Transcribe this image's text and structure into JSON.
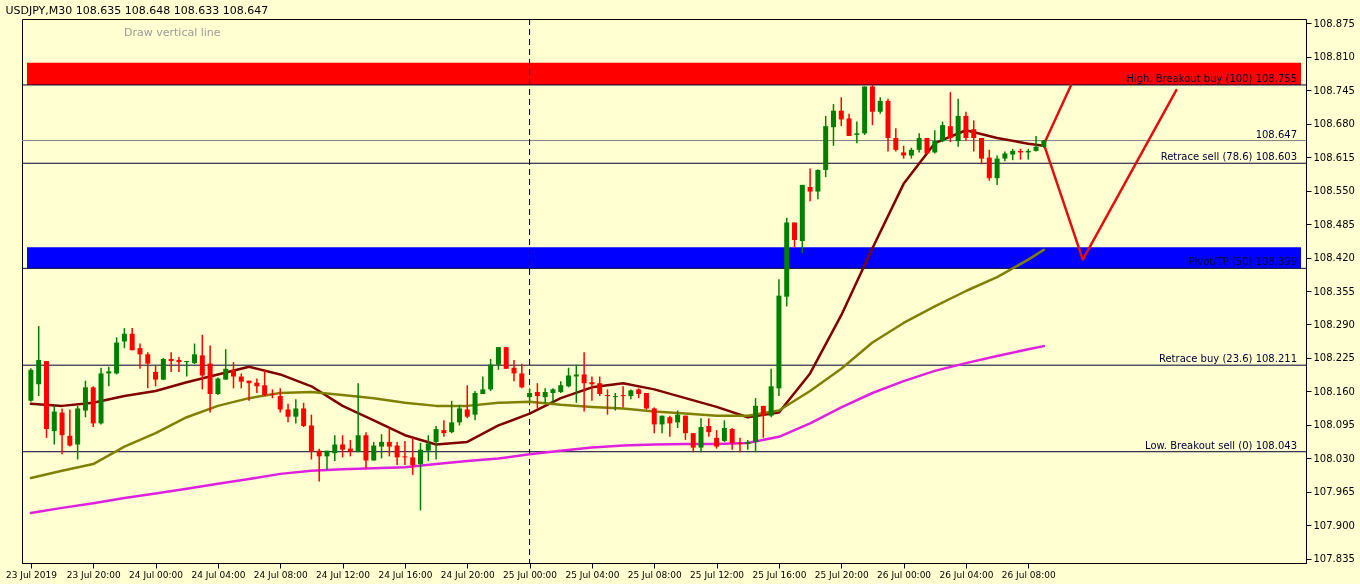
{
  "chart_data": {
    "type": "candlestick",
    "title": "USDJPY,M30  108.635 108.648 108.633 108.647",
    "annotations": [
      "Draw vertical line"
    ],
    "x": [
      "2019-07-23T16:00",
      "2019-07-23T16:30",
      "2019-07-23T17:00",
      "2019-07-23T17:30",
      "2019-07-23T18:00",
      "2019-07-23T18:30",
      "2019-07-23T19:00",
      "2019-07-23T19:30",
      "2019-07-23T20:00",
      "2019-07-23T20:30",
      "2019-07-23T21:00",
      "2019-07-23T21:30",
      "2019-07-23T22:00",
      "2019-07-23T22:30",
      "2019-07-23T23:00",
      "2019-07-23T23:30",
      "2019-07-24T00:00",
      "2019-07-24T00:30",
      "2019-07-24T01:00",
      "2019-07-24T01:30",
      "2019-07-24T02:00",
      "2019-07-24T02:30",
      "2019-07-24T03:00",
      "2019-07-24T03:30",
      "2019-07-24T04:00",
      "2019-07-24T04:30",
      "2019-07-24T05:00",
      "2019-07-24T05:30",
      "2019-07-24T06:00",
      "2019-07-24T06:30",
      "2019-07-24T07:00",
      "2019-07-24T07:30",
      "2019-07-24T08:00",
      "2019-07-24T08:30",
      "2019-07-24T09:00",
      "2019-07-24T09:30",
      "2019-07-24T10:00",
      "2019-07-24T10:30",
      "2019-07-24T11:00",
      "2019-07-24T11:30",
      "2019-07-24T12:00",
      "2019-07-24T12:30",
      "2019-07-24T13:00",
      "2019-07-24T13:30",
      "2019-07-24T14:00",
      "2019-07-24T14:30",
      "2019-07-24T15:00",
      "2019-07-24T15:30",
      "2019-07-24T16:00",
      "2019-07-24T16:30",
      "2019-07-24T17:00",
      "2019-07-24T17:30",
      "2019-07-24T18:00",
      "2019-07-24T18:30",
      "2019-07-24T19:00",
      "2019-07-24T19:30",
      "2019-07-24T20:00",
      "2019-07-24T20:30",
      "2019-07-24T21:00",
      "2019-07-24T21:30",
      "2019-07-24T22:00",
      "2019-07-24T22:30",
      "2019-07-24T23:00",
      "2019-07-24T23:30",
      "2019-07-25T00:00",
      "2019-07-25T00:30",
      "2019-07-25T01:00",
      "2019-07-25T01:30",
      "2019-07-25T02:00",
      "2019-07-25T02:30",
      "2019-07-25T03:00",
      "2019-07-25T03:30",
      "2019-07-25T04:00",
      "2019-07-25T04:30",
      "2019-07-25T05:00",
      "2019-07-25T05:30",
      "2019-07-25T06:00",
      "2019-07-25T06:30",
      "2019-07-25T07:00",
      "2019-07-25T07:30",
      "2019-07-25T08:00",
      "2019-07-25T08:30",
      "2019-07-25T09:00",
      "2019-07-25T09:30",
      "2019-07-25T10:00",
      "2019-07-25T10:30",
      "2019-07-25T11:00",
      "2019-07-25T11:30",
      "2019-07-25T12:00",
      "2019-07-25T12:30",
      "2019-07-25T13:00",
      "2019-07-25T13:30",
      "2019-07-25T14:00",
      "2019-07-25T14:30",
      "2019-07-25T15:00",
      "2019-07-25T15:30",
      "2019-07-25T16:00",
      "2019-07-25T16:30",
      "2019-07-25T17:00",
      "2019-07-25T17:30",
      "2019-07-25T18:00",
      "2019-07-25T18:30",
      "2019-07-25T19:00",
      "2019-07-25T19:30",
      "2019-07-25T20:00",
      "2019-07-25T20:30",
      "2019-07-25T21:00",
      "2019-07-25T21:30",
      "2019-07-25T22:00",
      "2019-07-25T22:30",
      "2019-07-25T23:00",
      "2019-07-25T23:30",
      "2019-07-26T00:00",
      "2019-07-26T00:30",
      "2019-07-26T01:00",
      "2019-07-26T01:30",
      "2019-07-26T02:00",
      "2019-07-26T02:30",
      "2019-07-26T03:00",
      "2019-07-26T03:30",
      "2019-07-26T04:00",
      "2019-07-26T04:30",
      "2019-07-26T05:00",
      "2019-07-26T05:30",
      "2019-07-26T06:00",
      "2019-07-26T06:30",
      "2019-07-26T07:00",
      "2019-07-26T07:30",
      "2019-07-26T08:00",
      "2019-07-26T08:30",
      "2019-07-26T09:00"
    ],
    "ohlc": [
      [
        108.142,
        108.205,
        108.14,
        108.202
      ],
      [
        108.174,
        108.287,
        108.151,
        108.221
      ],
      [
        108.219,
        108.219,
        108.07,
        108.087
      ],
      [
        108.083,
        108.132,
        108.057,
        108.121
      ],
      [
        108.119,
        108.127,
        108.038,
        108.075
      ],
      [
        108.074,
        108.125,
        108.053,
        108.055
      ],
      [
        108.057,
        108.132,
        108.028,
        108.127
      ],
      [
        108.123,
        108.181,
        108.11,
        108.168
      ],
      [
        108.168,
        108.17,
        108.091,
        108.098
      ],
      [
        108.098,
        108.206,
        108.096,
        108.195
      ],
      [
        108.195,
        108.208,
        108.17,
        108.199
      ],
      [
        108.195,
        108.265,
        108.193,
        108.255
      ],
      [
        108.257,
        108.283,
        108.244,
        108.272
      ],
      [
        108.272,
        108.283,
        108.24,
        108.24
      ],
      [
        108.244,
        108.253,
        108.204,
        108.232
      ],
      [
        108.232,
        108.236,
        108.166,
        108.214
      ],
      [
        108.198,
        108.21,
        108.17,
        108.183
      ],
      [
        108.183,
        108.225,
        108.182,
        108.223
      ],
      [
        108.223,
        108.236,
        108.198,
        108.219
      ],
      [
        108.221,
        108.227,
        108.198,
        108.217
      ],
      [
        108.217,
        108.219,
        108.189,
        108.219
      ],
      [
        108.215,
        108.253,
        108.213,
        108.232
      ],
      [
        108.23,
        108.27,
        108.164,
        108.191
      ],
      [
        108.214,
        108.249,
        108.119,
        108.155
      ],
      [
        108.155,
        108.187,
        108.153,
        108.185
      ],
      [
        108.183,
        108.242,
        108.183,
        108.204
      ],
      [
        108.202,
        108.217,
        108.166,
        108.189
      ],
      [
        108.189,
        108.195,
        108.166,
        108.179
      ],
      [
        108.181,
        108.181,
        108.142,
        108.176
      ],
      [
        108.177,
        108.185,
        108.157,
        108.17
      ],
      [
        108.172,
        108.202,
        108.151,
        108.153
      ],
      [
        108.155,
        108.164,
        108.147,
        108.153
      ],
      [
        108.151,
        108.166,
        108.119,
        108.125
      ],
      [
        108.125,
        108.136,
        108.1,
        108.111
      ],
      [
        108.111,
        108.145,
        108.098,
        108.127
      ],
      [
        108.127,
        108.138,
        108.091,
        108.093
      ],
      [
        108.094,
        108.115,
        108.028,
        108.043
      ],
      [
        108.045,
        108.049,
        107.985,
        108.034
      ],
      [
        108.034,
        108.045,
        108.008,
        108.045
      ],
      [
        108.04,
        108.075,
        108.025,
        108.057
      ],
      [
        108.057,
        108.075,
        108.032,
        108.047
      ],
      [
        108.049,
        108.066,
        108.034,
        108.043
      ],
      [
        108.043,
        108.176,
        108.042,
        108.075
      ],
      [
        108.075,
        108.081,
        108.011,
        108.026
      ],
      [
        108.026,
        108.062,
        108.026,
        108.055
      ],
      [
        108.053,
        108.077,
        108.03,
        108.062
      ],
      [
        108.062,
        108.089,
        108.034,
        108.053
      ],
      [
        108.055,
        108.062,
        108.017,
        108.032
      ],
      [
        108.034,
        108.064,
        108.017,
        108.032
      ],
      [
        108.032,
        108.07,
        107.998,
        108.017
      ],
      [
        108.019,
        108.06,
        107.929,
        108.047
      ],
      [
        108.045,
        108.075,
        108.025,
        108.059
      ],
      [
        108.062,
        108.093,
        108.028,
        108.087
      ],
      [
        108.085,
        108.104,
        108.072,
        108.079
      ],
      [
        108.081,
        108.142,
        108.079,
        108.1
      ],
      [
        108.1,
        108.134,
        108.094,
        108.127
      ],
      [
        108.125,
        108.172,
        108.108,
        108.111
      ],
      [
        108.115,
        108.161,
        108.104,
        108.157
      ],
      [
        108.155,
        108.189,
        108.155,
        108.164
      ],
      [
        108.164,
        108.223,
        108.161,
        108.212
      ],
      [
        108.212,
        108.246,
        108.202,
        108.246
      ],
      [
        108.246,
        108.246,
        108.204,
        108.204
      ],
      [
        108.206,
        108.221,
        108.18,
        108.195
      ],
      [
        108.195,
        108.214,
        108.166,
        108.168
      ],
      [
        108.149,
        108.166,
        108.142,
        108.157
      ],
      [
        108.159,
        108.176,
        108.127,
        108.151
      ],
      [
        108.149,
        108.166,
        108.138,
        108.159
      ],
      [
        108.157,
        108.166,
        108.138,
        108.164
      ],
      [
        108.159,
        108.18,
        108.157,
        108.172
      ],
      [
        108.17,
        108.206,
        108.168,
        108.191
      ],
      [
        108.189,
        108.212,
        108.138,
        108.193
      ],
      [
        108.193,
        108.236,
        108.121,
        108.176
      ],
      [
        108.178,
        108.189,
        108.142,
        108.174
      ],
      [
        108.176,
        108.189,
        108.151,
        108.155
      ],
      [
        108.153,
        108.164,
        108.115,
        108.151
      ],
      [
        108.149,
        108.157,
        108.123,
        108.151
      ],
      [
        108.153,
        108.17,
        108.129,
        108.151
      ],
      [
        108.151,
        108.164,
        108.145,
        108.162
      ],
      [
        108.164,
        108.166,
        108.147,
        108.155
      ],
      [
        108.157,
        108.157,
        108.125,
        108.127
      ],
      [
        108.127,
        108.129,
        108.079,
        108.096
      ],
      [
        108.096,
        108.113,
        108.079,
        108.113
      ],
      [
        108.11,
        108.113,
        108.072,
        108.098
      ],
      [
        108.1,
        108.123,
        108.089,
        108.115
      ],
      [
        108.113,
        108.113,
        108.066,
        108.079
      ],
      [
        108.079,
        108.079,
        108.042,
        108.051
      ],
      [
        108.051,
        108.108,
        108.042,
        108.091
      ],
      [
        108.093,
        108.108,
        108.072,
        108.081
      ],
      [
        108.07,
        108.085,
        108.049,
        108.053
      ],
      [
        108.064,
        108.104,
        108.062,
        108.089
      ],
      [
        108.087,
        108.089,
        108.047,
        108.06
      ],
      [
        108.06,
        108.07,
        108.042,
        108.058
      ],
      [
        108.058,
        108.066,
        108.047,
        108.062
      ],
      [
        108.062,
        108.147,
        108.042,
        108.132
      ],
      [
        108.132,
        108.132,
        108.07,
        108.113
      ],
      [
        108.113,
        108.204,
        108.11,
        108.17
      ],
      [
        108.166,
        108.378,
        108.151,
        108.346
      ],
      [
        108.344,
        108.497,
        108.325,
        108.488
      ],
      [
        108.488,
        108.488,
        108.44,
        108.454
      ],
      [
        108.452,
        108.561,
        108.429,
        108.561
      ],
      [
        108.557,
        108.593,
        108.529,
        108.548
      ],
      [
        108.548,
        108.591,
        108.533,
        108.59
      ],
      [
        108.59,
        108.695,
        108.576,
        108.675
      ],
      [
        108.673,
        108.718,
        108.637,
        108.705
      ],
      [
        108.705,
        108.731,
        108.675,
        108.688
      ],
      [
        108.69,
        108.699,
        108.656,
        108.656
      ],
      [
        108.658,
        108.684,
        108.642,
        108.661
      ],
      [
        108.661,
        108.752,
        108.658,
        108.752
      ],
      [
        108.752,
        108.755,
        108.677,
        108.703
      ],
      [
        108.703,
        108.731,
        108.699,
        108.724
      ],
      [
        108.724,
        108.728,
        108.626,
        108.652
      ],
      [
        108.652,
        108.671,
        108.626,
        108.629
      ],
      [
        108.624,
        108.637,
        108.612,
        108.618
      ],
      [
        108.618,
        108.633,
        108.612,
        108.629
      ],
      [
        108.629,
        108.661,
        108.624,
        108.652
      ],
      [
        108.652,
        108.652,
        108.62,
        108.622
      ],
      [
        108.624,
        108.667,
        108.622,
        108.646
      ],
      [
        108.646,
        108.684,
        108.644,
        108.677
      ],
      [
        108.675,
        108.741,
        108.644,
        108.652
      ],
      [
        108.646,
        108.728,
        108.635,
        108.695
      ],
      [
        108.695,
        108.703,
        108.646,
        108.652
      ],
      [
        108.669,
        108.686,
        108.626,
        108.652
      ],
      [
        108.652,
        108.652,
        108.601,
        108.612
      ],
      [
        108.614,
        108.629,
        108.569,
        108.574
      ],
      [
        108.574,
        108.618,
        108.561,
        108.612
      ],
      [
        108.612,
        108.626,
        108.607,
        108.622
      ],
      [
        108.62,
        108.631,
        108.609,
        108.627
      ],
      [
        108.627,
        108.631,
        108.61,
        108.624
      ],
      [
        108.624,
        108.631,
        108.61,
        108.627
      ],
      [
        108.627,
        108.656,
        108.626,
        108.635
      ],
      [
        108.635,
        108.648,
        108.633,
        108.647
      ]
    ],
    "colors": [
      "#008000",
      "#008000",
      "#ff0000",
      "#008000",
      "#ff0000",
      "#ff0000",
      "#008000",
      "#008000",
      "#ff0000",
      "#008000",
      "#008000",
      "#008000",
      "#008000",
      "#ff0000",
      "#ff0000",
      "#ff0000",
      "#ff0000",
      "#008000",
      "#ff0000",
      "#ff0000",
      "#008000",
      "#008000",
      "#ff0000",
      "#ff0000",
      "#008000",
      "#008000",
      "#ff0000",
      "#ff0000",
      "#ff0000",
      "#ff0000",
      "#ff0000",
      "#ff0000",
      "#ff0000",
      "#ff0000",
      "#008000",
      "#ff0000",
      "#ff0000",
      "#ff0000",
      "#008000",
      "#008000",
      "#ff0000",
      "#ff0000",
      "#008000",
      "#ff0000",
      "#008000",
      "#008000",
      "#ff0000",
      "#ff0000",
      "#ff0000",
      "#ff0000",
      "#008000",
      "#008000",
      "#008000",
      "#ff0000",
      "#008000",
      "#008000",
      "#ff0000",
      "#008000",
      "#008000",
      "#008000",
      "#008000",
      "#ff0000",
      "#ff0000",
      "#ff0000",
      "#008000",
      "#ff0000",
      "#008000",
      "#008000",
      "#008000",
      "#008000",
      "#008000",
      "#ff0000",
      "#ff0000",
      "#ff0000",
      "#ff0000",
      "#008000",
      "#ff0000",
      "#008000",
      "#ff0000",
      "#ff0000",
      "#ff0000",
      "#008000",
      "#ff0000",
      "#008000",
      "#ff0000",
      "#ff0000",
      "#008000",
      "#ff0000",
      "#ff0000",
      "#008000",
      "#ff0000",
      "#ff0000",
      "#008000",
      "#008000",
      "#ff0000",
      "#008000",
      "#008000",
      "#008000",
      "#ff0000",
      "#008000",
      "#ff0000",
      "#008000",
      "#008000",
      "#008000",
      "#ff0000",
      "#ff0000",
      "#008000",
      "#008000",
      "#ff0000",
      "#008000",
      "#ff0000",
      "#ff0000",
      "#ff0000",
      "#008000",
      "#008000",
      "#ff0000",
      "#008000",
      "#008000",
      "#ff0000",
      "#008000",
      "#ff0000",
      "#ff0000",
      "#ff0000",
      "#ff0000",
      "#008000",
      "#008000",
      "#008000",
      "#ff0000",
      "#008000",
      "#008000",
      "#008000"
    ],
    "series": [
      {
        "type": "line",
        "color": "#800000",
        "x": [
          "2019-07-23T16:00",
          "2019-07-23T18:00",
          "2019-07-23T20:00",
          "2019-07-23T22:00",
          "2019-07-24T00:00",
          "2019-07-24T02:00",
          "2019-07-24T04:00",
          "2019-07-24T06:00",
          "2019-07-24T08:00",
          "2019-07-24T10:00",
          "2019-07-24T12:00",
          "2019-07-24T14:00",
          "2019-07-24T16:00",
          "2019-07-24T18:00",
          "2019-07-24T20:00",
          "2019-07-24T22:00",
          "2019-07-25T00:00",
          "2019-07-25T02:00",
          "2019-07-25T04:00",
          "2019-07-25T06:00",
          "2019-07-25T08:00",
          "2019-07-25T10:00",
          "2019-07-25T12:00",
          "2019-07-25T14:00",
          "2019-07-25T16:00",
          "2019-07-25T18:00",
          "2019-07-25T20:00",
          "2019-07-25T22:00",
          "2019-07-26T00:00",
          "2019-07-26T02:00",
          "2019-07-26T04:00",
          "2019-07-26T06:00",
          "2019-07-26T08:00",
          "2019-07-26T09:00"
        ],
        "values": [
          108.136,
          108.132,
          108.138,
          108.151,
          108.161,
          108.178,
          108.193,
          108.208,
          108.193,
          108.17,
          108.132,
          108.104,
          108.075,
          108.057,
          108.062,
          108.094,
          108.117,
          108.147,
          108.168,
          108.176,
          108.164,
          108.147,
          108.13,
          108.11,
          108.119,
          108.195,
          108.308,
          108.438,
          108.563,
          108.642,
          108.667,
          108.652,
          108.641,
          108.637
        ]
      },
      {
        "type": "line",
        "color": "#808000",
        "x": [
          "2019-07-23T16:00",
          "2019-07-23T18:00",
          "2019-07-23T20:00",
          "2019-07-23T22:00",
          "2019-07-24T00:00",
          "2019-07-24T02:00",
          "2019-07-24T04:00",
          "2019-07-24T06:00",
          "2019-07-24T08:00",
          "2019-07-24T10:00",
          "2019-07-24T12:00",
          "2019-07-24T14:00",
          "2019-07-24T16:00",
          "2019-07-24T18:00",
          "2019-07-24T20:00",
          "2019-07-24T22:00",
          "2019-07-25T00:00",
          "2019-07-25T02:00",
          "2019-07-25T04:00",
          "2019-07-25T06:00",
          "2019-07-25T08:00",
          "2019-07-25T10:00",
          "2019-07-25T12:00",
          "2019-07-25T14:00",
          "2019-07-25T16:00",
          "2019-07-25T18:00",
          "2019-07-25T20:00",
          "2019-07-25T22:00",
          "2019-07-26T00:00",
          "2019-07-26T02:00",
          "2019-07-26T04:00",
          "2019-07-26T06:00",
          "2019-07-26T08:00",
          "2019-07-26T09:00"
        ],
        "values": [
          107.992,
          108.006,
          108.019,
          108.053,
          108.079,
          108.11,
          108.132,
          108.147,
          108.157,
          108.159,
          108.153,
          108.147,
          108.138,
          108.132,
          108.132,
          108.138,
          108.14,
          108.134,
          108.13,
          108.127,
          108.121,
          108.117,
          108.113,
          108.113,
          108.123,
          108.161,
          108.204,
          108.255,
          108.293,
          108.325,
          108.355,
          108.382,
          108.416,
          108.435
        ]
      },
      {
        "type": "line",
        "color": "#e020e0",
        "x": [
          "2019-07-23T16:00",
          "2019-07-23T18:00",
          "2019-07-23T20:00",
          "2019-07-23T22:00",
          "2019-07-24T00:00",
          "2019-07-24T02:00",
          "2019-07-24T04:00",
          "2019-07-24T06:00",
          "2019-07-24T08:00",
          "2019-07-24T10:00",
          "2019-07-24T12:00",
          "2019-07-24T14:00",
          "2019-07-24T16:00",
          "2019-07-24T18:00",
          "2019-07-24T20:00",
          "2019-07-24T22:00",
          "2019-07-25T00:00",
          "2019-07-25T02:00",
          "2019-07-25T04:00",
          "2019-07-25T06:00",
          "2019-07-25T08:00",
          "2019-07-25T10:00",
          "2019-07-25T12:00",
          "2019-07-25T14:00",
          "2019-07-25T16:00",
          "2019-07-25T18:00",
          "2019-07-25T20:00",
          "2019-07-25T22:00",
          "2019-07-26T00:00",
          "2019-07-26T02:00",
          "2019-07-26T04:00",
          "2019-07-26T06:00",
          "2019-07-26T08:00",
          "2019-07-26T09:00"
        ],
        "values": [
          107.924,
          107.934,
          107.943,
          107.953,
          107.962,
          107.971,
          107.981,
          107.99,
          108.0,
          108.006,
          108.009,
          108.011,
          108.013,
          108.019,
          108.025,
          108.03,
          108.038,
          108.045,
          108.051,
          108.055,
          108.057,
          108.058,
          108.058,
          108.06,
          108.072,
          108.098,
          108.129,
          108.157,
          108.18,
          108.2,
          108.215,
          108.229,
          108.242,
          108.248
        ]
      },
      {
        "type": "line",
        "color": "#e01010",
        "x": [
          "2019-07-26T09:00",
          "2019-07-26T10:45"
        ],
        "values": [
          108.64,
          108.755
        ]
      },
      {
        "type": "line",
        "color": "#e01010",
        "x": [
          "2019-07-26T09:00",
          "2019-07-26T11:30",
          "2019-07-26T17:30"
        ],
        "values": [
          108.64,
          108.416,
          108.745
        ]
      }
    ],
    "xlim": [
      "2019-07-23T15:45",
      "2019-07-27T01:30"
    ],
    "xticks": [
      {
        "value": "2019-07-23T16:00",
        "label": "23 Jul 2019"
      },
      {
        "value": "2019-07-23T20:00",
        "label": "23 Jul 20:00"
      },
      {
        "value": "2019-07-24T00:00",
        "label": "24 Jul 00:00"
      },
      {
        "value": "2019-07-24T04:00",
        "label": "24 Jul 04:00"
      },
      {
        "value": "2019-07-24T08:00",
        "label": "24 Jul 08:00"
      },
      {
        "value": "2019-07-24T12:00",
        "label": "24 Jul 12:00"
      },
      {
        "value": "2019-07-24T16:00",
        "label": "24 Jul 16:00"
      },
      {
        "value": "2019-07-24T20:00",
        "label": "24 Jul 20:00"
      },
      {
        "value": "2019-07-25T00:00",
        "label": "25 Jul 00:00"
      },
      {
        "value": "2019-07-25T04:00",
        "label": "25 Jul 04:00"
      },
      {
        "value": "2019-07-25T08:00",
        "label": "25 Jul 08:00"
      },
      {
        "value": "2019-07-25T12:00",
        "label": "25 Jul 12:00"
      },
      {
        "value": "2019-07-25T16:00",
        "label": "25 Jul 16:00"
      },
      {
        "value": "2019-07-25T20:00",
        "label": "25 Jul 20:00"
      },
      {
        "value": "2019-07-26T00:00",
        "label": "26 Jul 00:00"
      },
      {
        "value": "2019-07-26T04:00",
        "label": "26 Jul 04:00"
      },
      {
        "value": "2019-07-26T08:00",
        "label": "26 Jul 08:00"
      }
    ],
    "ylim": [
      107.827,
      108.883
    ],
    "yticks": [
      107.835,
      {
        "value": 107.9,
        "label": "107.900"
      },
      107.965,
      {
        "value": 108.03,
        "label": "108.030"
      },
      108.095,
      {
        "value": 108.16,
        "label": "108.160"
      },
      108.225,
      {
        "value": 108.29,
        "label": "108.290"
      },
      108.355,
      {
        "value": 108.42,
        "label": "108.420"
      },
      108.485,
      {
        "value": 108.55,
        "label": "108.550"
      },
      108.615,
      {
        "value": 108.68,
        "label": "108.680"
      },
      108.745,
      {
        "value": 108.81,
        "label": "108.810"
      },
      108.875
    ],
    "bands": [
      {
        "axis": "y",
        "from": 108.755,
        "to": 108.798,
        "color": "#ff0000"
      },
      {
        "axis": "y",
        "from": 108.399,
        "to": 108.44,
        "color": "#0000ff"
      }
    ],
    "ref_lines": [
      {
        "axis": "y",
        "value": 108.755,
        "label": "High. Breakout buy (100)  108.755",
        "color": "#000033"
      },
      {
        "axis": "y",
        "value": 108.647,
        "label": "108.647",
        "color": "#808080"
      },
      {
        "axis": "y",
        "value": 108.603,
        "label": "Retrace sell (78.6)  108.603",
        "color": "#000033"
      },
      {
        "axis": "y",
        "value": 108.399,
        "label": "Pivot/TP (50)  108.399",
        "color": "#000033"
      },
      {
        "axis": "y",
        "value": 108.211,
        "label": "Retrace buy (23.6)  108.211",
        "color": "#000033"
      },
      {
        "axis": "y",
        "value": 108.043,
        "label": "Low. Breakout sell (0)  108.043",
        "color": "#000033"
      },
      {
        "axis": "x",
        "value": "2019-07-25T00:00",
        "color": "#000000",
        "line_style": "dashed"
      }
    ],
    "grid": false
  }
}
